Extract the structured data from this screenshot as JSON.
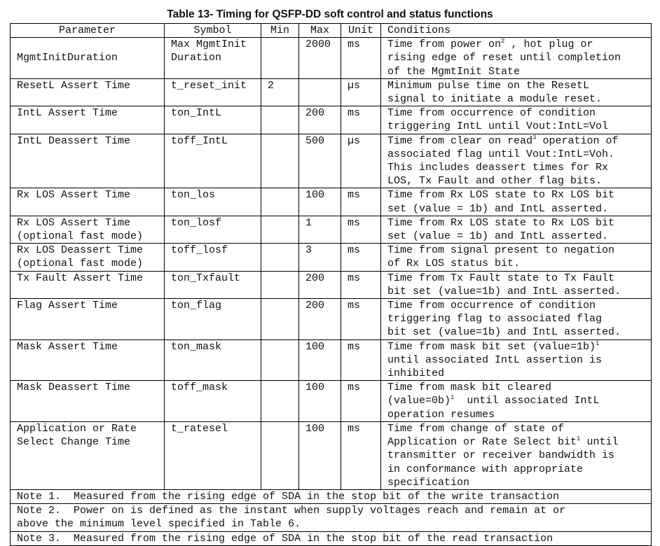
{
  "title": "Table 13- Timing for QSFP-DD soft control and status functions",
  "headers": [
    "Parameter",
    "Symbol",
    "Min",
    "Max",
    "Unit",
    "Conditions"
  ],
  "rows": [
    {
      "parameter": [
        "MgmtInitDuration"
      ],
      "param_middle": true,
      "symbol": [
        "Max MgmtInit",
        "Duration"
      ],
      "min": "",
      "max": "2000",
      "unit": "ms",
      "conditions": [
        "Time from power on^2 , hot plug or",
        "rising edge of reset until completion",
        "of the MgmtInit State"
      ]
    },
    {
      "parameter": [
        "ResetL Assert Time"
      ],
      "symbol": [
        "t_reset_init"
      ],
      "min": "2",
      "max": "",
      "unit": "µs",
      "conditions": [
        "Minimum pulse time on the ResetL",
        "signal to initiate a module reset."
      ]
    },
    {
      "parameter": [
        "IntL Assert Time"
      ],
      "symbol": [
        "ton_IntL"
      ],
      "min": "",
      "max": "200",
      "unit": "ms",
      "conditions": [
        "Time from occurrence of condition",
        "triggering IntL until Vout:IntL=Vol"
      ]
    },
    {
      "parameter": [
        "IntL Deassert Time"
      ],
      "symbol": [
        "toff_IntL"
      ],
      "min": "",
      "max": "500",
      "unit": "µs",
      "conditions": [
        "Time from clear on read^3 operation of",
        "associated flag until Vout:IntL=Voh.",
        "This includes deassert times for Rx",
        "LOS, Tx Fault and other flag bits."
      ]
    },
    {
      "parameter": [
        "Rx LOS Assert Time"
      ],
      "symbol": [
        "ton_los"
      ],
      "min": "",
      "max": "100",
      "unit": "ms",
      "conditions": [
        "Time from Rx LOS state to Rx LOS bit",
        "set (value = 1b) and IntL asserted."
      ]
    },
    {
      "parameter": [
        "Rx LOS Assert Time",
        "(optional fast mode)"
      ],
      "symbol": [
        "ton_losf"
      ],
      "min": "",
      "max": "1",
      "unit": "ms",
      "conditions": [
        "Time from Rx LOS state to Rx LOS bit",
        "set (value = 1b) and IntL asserted."
      ]
    },
    {
      "parameter": [
        "Rx LOS Deassert Time",
        "(optional fast mode)"
      ],
      "symbol": [
        "toff_losf"
      ],
      "min": "",
      "max": "3",
      "unit": "ms",
      "conditions": [
        "Time from signal present to negation",
        "of Rx LOS status bit."
      ]
    },
    {
      "parameter": [
        "Tx Fault Assert Time"
      ],
      "symbol": [
        "ton_Txfault"
      ],
      "min": "",
      "max": "200",
      "unit": "ms",
      "conditions": [
        "Time from Tx Fault state to Tx Fault",
        "bit set (value=1b) and IntL asserted."
      ]
    },
    {
      "parameter": [
        "Flag Assert Time"
      ],
      "symbol": [
        "ton_flag"
      ],
      "min": "",
      "max": "200",
      "unit": "ms",
      "conditions": [
        "Time from occurrence of condition",
        "triggering flag to associated flag",
        "bit set (value=1b) and IntL asserted."
      ]
    },
    {
      "parameter": [
        "Mask Assert Time"
      ],
      "symbol": [
        "ton_mask"
      ],
      "min": "",
      "max": "100",
      "unit": "ms",
      "conditions": [
        "Time from mask bit set (value=1b)^1",
        "until associated IntL assertion is",
        "inhibited"
      ]
    },
    {
      "parameter": [
        "Mask Deassert Time"
      ],
      "symbol": [
        "toff_mask"
      ],
      "min": "",
      "max": "100",
      "unit": "ms",
      "conditions": [
        "Time from mask bit cleared",
        "(value=0b)^1  until associated IntL",
        "operation resumes"
      ]
    },
    {
      "parameter": [
        "Application or Rate",
        "Select Change Time"
      ],
      "symbol": [
        "t_ratesel"
      ],
      "min": "",
      "max": "100",
      "unit": "ms",
      "conditions": [
        "Time from change of state of",
        "Application or Rate Select bit^1 until",
        "transmitter or receiver bandwidth is",
        "in conformance with appropriate",
        "specification"
      ]
    }
  ],
  "notes": [
    [
      "Note 1.  Measured from the rising edge of SDA in the stop bit of the write transaction"
    ],
    [
      "Note 2.  Power on is defined as the instant when supply voltages reach and remain at or",
      "above the minimum level specified in Table 6."
    ],
    [
      "Note 3.  Measured from the rising edge of SDA in the stop bit of the read transaction"
    ]
  ]
}
